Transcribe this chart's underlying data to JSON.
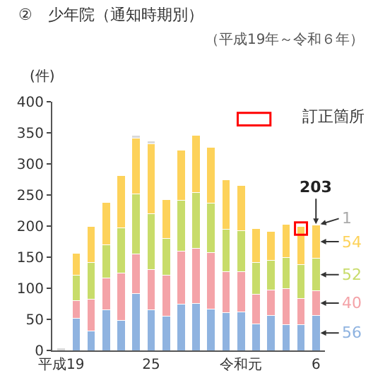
{
  "chart_data": {
    "type": "bar",
    "stacked": true,
    "title": "②　少年院（通知時期別）",
    "subtitle": "（平成19年～令和６年）",
    "ylabel": "(件)",
    "categories": [
      "平成19",
      null,
      null,
      null,
      null,
      null,
      "25",
      null,
      null,
      null,
      null,
      null,
      "令和元",
      null,
      null,
      null,
      null,
      "6"
    ],
    "series": [
      {
        "color": "#8fb3e0",
        "values": [
          null,
          52,
          31,
          65,
          48,
          91,
          65,
          55,
          75,
          76,
          67,
          61,
          62,
          43,
          56,
          41,
          42,
          56
        ],
        "value_labels": [
          null,
          null,
          null,
          null,
          null,
          null,
          null,
          null,
          null,
          null,
          null,
          null,
          null,
          null,
          null,
          null,
          null,
          "56"
        ]
      },
      {
        "color": "#f4a3a8",
        "values": [
          null,
          28,
          51,
          51,
          77,
          64,
          65,
          66,
          85,
          88,
          90,
          66,
          65,
          47,
          41,
          58,
          42,
          40
        ],
        "value_labels": [
          null,
          null,
          null,
          null,
          null,
          null,
          null,
          null,
          null,
          null,
          null,
          null,
          null,
          null,
          null,
          null,
          null,
          "40"
        ]
      },
      {
        "color": "#c8dc6a",
        "values": [
          null,
          41,
          60,
          54,
          72,
          97,
          90,
          59,
          82,
          90,
          80,
          68,
          66,
          51,
          48,
          50,
          54,
          52
        ],
        "value_labels": [
          null,
          null,
          null,
          null,
          null,
          null,
          null,
          null,
          null,
          null,
          null,
          null,
          null,
          null,
          null,
          null,
          null,
          "52"
        ]
      },
      {
        "color": "#fdd25a",
        "values": [
          null,
          35,
          58,
          68,
          84,
          90,
          112,
          63,
          80,
          92,
          90,
          80,
          72,
          55,
          46,
          54,
          62,
          54
        ],
        "value_labels": [
          null,
          null,
          null,
          null,
          null,
          null,
          null,
          null,
          null,
          null,
          null,
          null,
          null,
          null,
          null,
          null,
          null,
          "54"
        ]
      },
      {
        "color": "#d9d9d9",
        "values": [
          4,
          null,
          null,
          null,
          null,
          4,
          5,
          null,
          null,
          null,
          null,
          null,
          null,
          null,
          null,
          null,
          null,
          1
        ],
        "value_labels": [
          null,
          null,
          null,
          null,
          null,
          null,
          null,
          null,
          null,
          null,
          null,
          null,
          null,
          null,
          null,
          null,
          null,
          "1"
        ]
      }
    ],
    "totals": [
      null,
      null,
      null,
      null,
      null,
      null,
      null,
      null,
      null,
      null,
      null,
      null,
      null,
      null,
      null,
      null,
      null,
      "203"
    ],
    "annotations": [
      "訂正箇所"
    ],
    "ylim": [
      0,
      400
    ],
    "yticks": [
      0,
      50,
      100,
      150,
      200,
      250,
      300,
      350,
      400
    ]
  }
}
